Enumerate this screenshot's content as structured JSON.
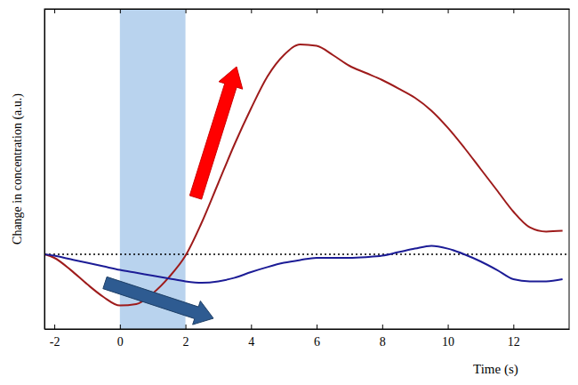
{
  "chart_data": {
    "type": "line",
    "x_label": "Time (s)",
    "y_label": "Change in concentration (a.u.)",
    "x": [
      -2.3,
      -2,
      -1.5,
      -1,
      -0.5,
      0,
      0.5,
      1,
      1.5,
      2,
      2.5,
      3,
      3.5,
      4,
      4.5,
      5,
      5.5,
      6,
      6.5,
      7,
      7.5,
      8,
      8.5,
      9,
      9.5,
      10,
      10.5,
      11,
      11.5,
      12,
      12.5,
      13,
      13.5
    ],
    "series": [
      {
        "color": "#9e1b1b",
        "values": [
          0,
          -0.05,
          -0.22,
          -0.42,
          -0.6,
          -0.72,
          -0.7,
          -0.55,
          -0.32,
          -0.02,
          0.45,
          1.0,
          1.55,
          2.05,
          2.5,
          2.8,
          2.95,
          2.93,
          2.8,
          2.65,
          2.55,
          2.45,
          2.33,
          2.2,
          2.02,
          1.78,
          1.5,
          1.2,
          0.9,
          0.6,
          0.38,
          0.32,
          0.33
        ]
      },
      {
        "color": "#1c1c96",
        "values": [
          0,
          -0.02,
          -0.07,
          -0.12,
          -0.17,
          -0.22,
          -0.26,
          -0.3,
          -0.34,
          -0.38,
          -0.4,
          -0.38,
          -0.33,
          -0.25,
          -0.18,
          -0.12,
          -0.08,
          -0.05,
          -0.05,
          -0.05,
          -0.04,
          -0.02,
          0.03,
          0.08,
          0.12,
          0.08,
          0.0,
          -0.1,
          -0.22,
          -0.35,
          -0.38,
          -0.38,
          -0.35
        ]
      }
    ],
    "xlim": [
      -2.3,
      13.7
    ],
    "xticks": [
      -2,
      0,
      2,
      4,
      6,
      8,
      10,
      12
    ],
    "ylim": [
      -1.05,
      3.45
    ],
    "yticks": [],
    "tick_labels": "x",
    "hline": 0,
    "shaded_region": [
      0,
      2
    ]
  }
}
